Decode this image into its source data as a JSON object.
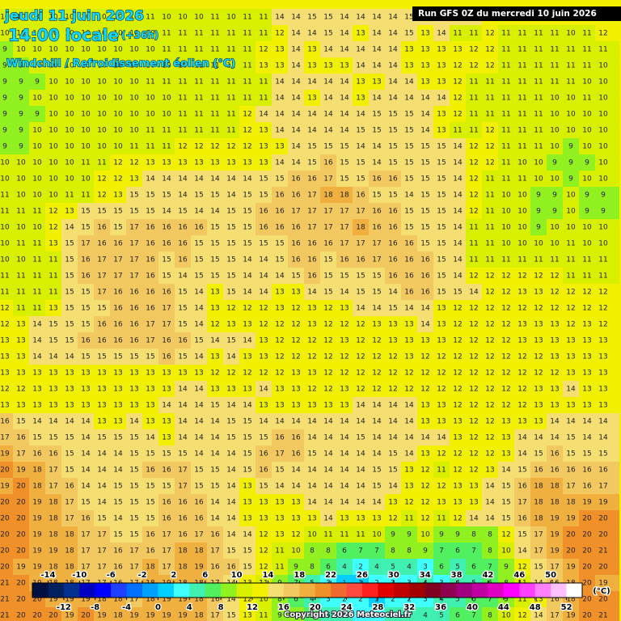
{
  "header": {
    "date": "jeudi 11 juin 2026",
    "time": "14:00 locale",
    "lead": "(+36h)",
    "parameter": "Windchill / Refroidissement éolien (°C)",
    "run": "Run GFS 0Z du mercredi 10 juin 2026"
  },
  "map": {
    "grid": [
      [
        10,
        10,
        10,
        10,
        10,
        10,
        10,
        10,
        10,
        11,
        10,
        10,
        10,
        11,
        10,
        11,
        11,
        14,
        14,
        15,
        15,
        14,
        14,
        14,
        14,
        15,
        15,
        14,
        14,
        14,
        13,
        13,
        12,
        12,
        12,
        12,
        12,
        12
      ],
      [
        10,
        10,
        10,
        10,
        10,
        10,
        10,
        10,
        10,
        10,
        11,
        11,
        11,
        11,
        11,
        11,
        11,
        12,
        14,
        14,
        15,
        14,
        13,
        14,
        14,
        15,
        13,
        14,
        11,
        11,
        12,
        11,
        11,
        11,
        11,
        10,
        11,
        12
      ],
      [
        9,
        10,
        10,
        10,
        10,
        10,
        10,
        10,
        10,
        10,
        11,
        11,
        11,
        11,
        11,
        11,
        12,
        13,
        14,
        13,
        14,
        14,
        14,
        14,
        14,
        13,
        13,
        13,
        13,
        12,
        12,
        11,
        11,
        11,
        11,
        11,
        11,
        11
      ],
      [
        9,
        9,
        10,
        10,
        10,
        10,
        10,
        10,
        10,
        10,
        10,
        10,
        11,
        11,
        11,
        11,
        13,
        13,
        14,
        13,
        13,
        13,
        14,
        14,
        14,
        13,
        13,
        13,
        12,
        12,
        12,
        11,
        11,
        11,
        11,
        11,
        11,
        10
      ],
      [
        9,
        9,
        9,
        10,
        10,
        10,
        10,
        10,
        10,
        11,
        11,
        11,
        11,
        11,
        11,
        11,
        11,
        14,
        14,
        14,
        14,
        14,
        13,
        13,
        14,
        14,
        13,
        13,
        12,
        11,
        11,
        11,
        11,
        11,
        11,
        11,
        10,
        10
      ],
      [
        9,
        9,
        10,
        10,
        10,
        10,
        10,
        10,
        10,
        10,
        10,
        11,
        11,
        11,
        11,
        11,
        11,
        14,
        14,
        13,
        14,
        14,
        13,
        14,
        14,
        14,
        14,
        14,
        12,
        11,
        11,
        11,
        11,
        11,
        10,
        10,
        11,
        10
      ],
      [
        9,
        9,
        9,
        10,
        10,
        10,
        10,
        10,
        10,
        10,
        10,
        11,
        11,
        11,
        11,
        12,
        14,
        14,
        14,
        14,
        14,
        14,
        14,
        15,
        15,
        15,
        14,
        13,
        12,
        11,
        11,
        11,
        11,
        11,
        10,
        10,
        10,
        10
      ],
      [
        9,
        9,
        10,
        10,
        10,
        10,
        10,
        10,
        10,
        11,
        11,
        11,
        11,
        11,
        11,
        12,
        13,
        14,
        14,
        14,
        14,
        14,
        15,
        15,
        15,
        15,
        14,
        13,
        11,
        11,
        12,
        11,
        11,
        11,
        10,
        10,
        10,
        10
      ],
      [
        9,
        9,
        10,
        10,
        10,
        10,
        10,
        10,
        11,
        11,
        11,
        12,
        12,
        12,
        12,
        12,
        13,
        13,
        14,
        15,
        15,
        15,
        14,
        14,
        15,
        15,
        15,
        15,
        14,
        12,
        12,
        11,
        11,
        11,
        10,
        9,
        10,
        10
      ],
      [
        10,
        10,
        10,
        10,
        10,
        11,
        11,
        12,
        12,
        13,
        13,
        13,
        13,
        13,
        13,
        13,
        13,
        14,
        14,
        15,
        16,
        15,
        15,
        14,
        15,
        15,
        15,
        15,
        14,
        12,
        12,
        11,
        10,
        10,
        9,
        9,
        9,
        10
      ],
      [
        10,
        10,
        10,
        10,
        10,
        10,
        12,
        12,
        13,
        14,
        14,
        14,
        14,
        14,
        14,
        14,
        15,
        15,
        16,
        16,
        17,
        15,
        15,
        16,
        16,
        15,
        15,
        15,
        14,
        12,
        11,
        11,
        11,
        10,
        10,
        9,
        10,
        10
      ],
      [
        11,
        10,
        10,
        10,
        11,
        11,
        12,
        13,
        15,
        15,
        15,
        14,
        15,
        15,
        14,
        15,
        15,
        16,
        16,
        17,
        18,
        18,
        16,
        15,
        15,
        14,
        15,
        15,
        14,
        12,
        11,
        10,
        10,
        9,
        9,
        10,
        9,
        9
      ],
      [
        11,
        11,
        11,
        12,
        13,
        15,
        15,
        15,
        15,
        15,
        14,
        15,
        14,
        14,
        15,
        15,
        16,
        16,
        17,
        17,
        17,
        17,
        17,
        16,
        16,
        15,
        15,
        15,
        14,
        12,
        11,
        10,
        10,
        9,
        9,
        10,
        9,
        9
      ],
      [
        10,
        10,
        10,
        12,
        14,
        15,
        16,
        15,
        17,
        16,
        16,
        16,
        16,
        15,
        15,
        15,
        16,
        16,
        16,
        17,
        17,
        17,
        18,
        16,
        16,
        15,
        15,
        15,
        14,
        11,
        11,
        10,
        10,
        9,
        10,
        10,
        10,
        10
      ],
      [
        10,
        11,
        11,
        13,
        15,
        17,
        16,
        16,
        17,
        16,
        16,
        16,
        15,
        15,
        15,
        15,
        15,
        15,
        16,
        16,
        16,
        17,
        17,
        17,
        16,
        16,
        15,
        15,
        14,
        11,
        11,
        10,
        10,
        10,
        10,
        11,
        10,
        10
      ],
      [
        10,
        10,
        11,
        11,
        15,
        16,
        17,
        17,
        17,
        16,
        15,
        16,
        15,
        15,
        15,
        14,
        14,
        15,
        16,
        16,
        15,
        16,
        16,
        17,
        16,
        16,
        16,
        15,
        14,
        11,
        11,
        11,
        11,
        11,
        11,
        11,
        11,
        11
      ],
      [
        11,
        11,
        11,
        11,
        15,
        16,
        17,
        17,
        17,
        16,
        15,
        14,
        15,
        15,
        15,
        14,
        14,
        14,
        15,
        16,
        15,
        15,
        15,
        15,
        16,
        16,
        16,
        15,
        14,
        12,
        12,
        12,
        12,
        12,
        12,
        11,
        11,
        11
      ],
      [
        11,
        11,
        11,
        11,
        15,
        15,
        17,
        16,
        16,
        16,
        16,
        15,
        14,
        13,
        15,
        14,
        14,
        13,
        13,
        14,
        15,
        14,
        15,
        15,
        14,
        16,
        16,
        15,
        15,
        14,
        12,
        12,
        13,
        13,
        12,
        12,
        12,
        12
      ],
      [
        12,
        11,
        11,
        13,
        15,
        15,
        15,
        16,
        16,
        16,
        17,
        15,
        14,
        13,
        12,
        12,
        12,
        13,
        12,
        13,
        12,
        13,
        14,
        14,
        15,
        14,
        14,
        13,
        12,
        12,
        12,
        12,
        12,
        12,
        12,
        12,
        12,
        12
      ],
      [
        12,
        13,
        14,
        15,
        15,
        15,
        16,
        16,
        16,
        17,
        17,
        15,
        14,
        12,
        13,
        13,
        12,
        12,
        12,
        13,
        12,
        12,
        12,
        13,
        13,
        13,
        14,
        13,
        12,
        12,
        12,
        12,
        13,
        13,
        13,
        12,
        13,
        12
      ],
      [
        13,
        13,
        14,
        15,
        15,
        16,
        16,
        16,
        16,
        17,
        16,
        16,
        15,
        14,
        15,
        14,
        13,
        12,
        12,
        12,
        12,
        13,
        12,
        12,
        13,
        13,
        13,
        13,
        12,
        12,
        12,
        12,
        13,
        13,
        13,
        13,
        13,
        13
      ],
      [
        13,
        13,
        14,
        14,
        14,
        15,
        15,
        15,
        15,
        15,
        16,
        15,
        14,
        13,
        14,
        13,
        13,
        12,
        12,
        12,
        12,
        12,
        12,
        12,
        12,
        13,
        12,
        12,
        12,
        12,
        12,
        12,
        12,
        12,
        13,
        13,
        13,
        13
      ],
      [
        13,
        13,
        13,
        13,
        13,
        13,
        13,
        13,
        13,
        13,
        13,
        13,
        13,
        12,
        12,
        12,
        12,
        12,
        13,
        13,
        12,
        12,
        12,
        12,
        12,
        12,
        12,
        12,
        12,
        12,
        12,
        12,
        12,
        12,
        12,
        13,
        13,
        13
      ],
      [
        12,
        12,
        13,
        13,
        13,
        13,
        13,
        13,
        13,
        13,
        13,
        14,
        14,
        13,
        13,
        13,
        14,
        13,
        13,
        12,
        12,
        13,
        12,
        12,
        12,
        12,
        12,
        12,
        12,
        12,
        12,
        12,
        12,
        13,
        13,
        14,
        13,
        13
      ],
      [
        13,
        13,
        13,
        13,
        13,
        13,
        13,
        13,
        13,
        13,
        14,
        14,
        14,
        15,
        14,
        14,
        13,
        13,
        13,
        13,
        13,
        13,
        14,
        14,
        14,
        14,
        13,
        13,
        12,
        12,
        12,
        12,
        12,
        13,
        13,
        13,
        13,
        13
      ],
      [
        16,
        15,
        14,
        14,
        14,
        14,
        13,
        13,
        14,
        13,
        13,
        14,
        14,
        14,
        15,
        15,
        14,
        14,
        14,
        14,
        14,
        14,
        14,
        14,
        14,
        14,
        13,
        13,
        13,
        12,
        12,
        13,
        13,
        13,
        14,
        14,
        14,
        14
      ],
      [
        17,
        16,
        15,
        15,
        15,
        14,
        15,
        15,
        15,
        14,
        13,
        14,
        14,
        14,
        15,
        15,
        15,
        16,
        16,
        14,
        14,
        14,
        15,
        14,
        14,
        14,
        14,
        14,
        13,
        12,
        12,
        13,
        14,
        14,
        14,
        15,
        14,
        14
      ],
      [
        19,
        17,
        16,
        16,
        15,
        14,
        14,
        14,
        15,
        15,
        15,
        15,
        14,
        14,
        14,
        15,
        16,
        17,
        16,
        15,
        14,
        14,
        14,
        14,
        15,
        14,
        13,
        12,
        12,
        12,
        12,
        13,
        14,
        15,
        16,
        15,
        15,
        15
      ],
      [
        20,
        19,
        18,
        17,
        15,
        14,
        14,
        14,
        15,
        16,
        16,
        17,
        15,
        15,
        14,
        15,
        16,
        15,
        14,
        14,
        14,
        14,
        14,
        15,
        15,
        13,
        12,
        11,
        12,
        12,
        13,
        14,
        15,
        16,
        16,
        16,
        16,
        16
      ],
      [
        19,
        20,
        18,
        17,
        16,
        14,
        14,
        15,
        15,
        15,
        15,
        17,
        15,
        15,
        14,
        13,
        15,
        14,
        14,
        14,
        14,
        14,
        14,
        15,
        14,
        13,
        12,
        12,
        13,
        13,
        14,
        15,
        16,
        18,
        18,
        17,
        16,
        17
      ],
      [
        20,
        20,
        19,
        18,
        17,
        15,
        14,
        15,
        15,
        15,
        16,
        16,
        16,
        14,
        14,
        13,
        13,
        13,
        13,
        14,
        14,
        14,
        14,
        14,
        13,
        12,
        12,
        13,
        13,
        13,
        14,
        15,
        17,
        18,
        18,
        18,
        19,
        19
      ],
      [
        20,
        20,
        19,
        18,
        17,
        16,
        15,
        14,
        15,
        15,
        16,
        16,
        16,
        14,
        14,
        13,
        13,
        13,
        13,
        13,
        14,
        13,
        13,
        13,
        12,
        11,
        12,
        11,
        12,
        14,
        14,
        15,
        16,
        18,
        19,
        19,
        20,
        20
      ],
      [
        20,
        20,
        19,
        18,
        18,
        17,
        17,
        15,
        15,
        16,
        17,
        16,
        17,
        16,
        14,
        14,
        12,
        13,
        12,
        10,
        11,
        11,
        11,
        10,
        9,
        9,
        10,
        9,
        9,
        8,
        8,
        12,
        15,
        17,
        19,
        20,
        20,
        20
      ],
      [
        20,
        20,
        19,
        19,
        18,
        17,
        17,
        16,
        17,
        16,
        17,
        18,
        18,
        17,
        15,
        15,
        12,
        11,
        10,
        8,
        8,
        6,
        7,
        7,
        8,
        8,
        9,
        7,
        6,
        7,
        8,
        10,
        14,
        17,
        19,
        20,
        20,
        21
      ],
      [
        20,
        19,
        19,
        18,
        18,
        17,
        17,
        16,
        17,
        18,
        17,
        18,
        19,
        16,
        16,
        15,
        12,
        11,
        9,
        8,
        6,
        4,
        2,
        4,
        5,
        4,
        3,
        6,
        5,
        6,
        7,
        9,
        12,
        15,
        17,
        19,
        20,
        20
      ],
      [
        21,
        20,
        19,
        18,
        18,
        17,
        17,
        16,
        17,
        18,
        19,
        18,
        18,
        17,
        14,
        13,
        11,
        9,
        7,
        5,
        3,
        1,
        1,
        2,
        3,
        3,
        4,
        3,
        4,
        5,
        6,
        8,
        11,
        14,
        16,
        18,
        20,
        19
      ],
      [
        21,
        20,
        20,
        19,
        19,
        19,
        18,
        18,
        17,
        18,
        19,
        19,
        18,
        16,
        14,
        12,
        10,
        8,
        6,
        4,
        3,
        2,
        2,
        1,
        2,
        2,
        3,
        4,
        5,
        6,
        7,
        9,
        11,
        13,
        16,
        18,
        20,
        20
      ],
      [
        21,
        20,
        20,
        20,
        19,
        20,
        19,
        18,
        19,
        19,
        19,
        19,
        18,
        17,
        15,
        13,
        11,
        9,
        8,
        6,
        5,
        4,
        3,
        3,
        4,
        4,
        4,
        5,
        6,
        7,
        8,
        10,
        12,
        14,
        17,
        19,
        20,
        21
      ]
    ],
    "colorbar": {
      "lim": [
        -16,
        54
      ],
      "colors": [
        "#001040",
        "#002060",
        "#003090",
        "#0000c0",
        "#0000ff",
        "#2040ff",
        "#0070ff",
        "#00a0ff",
        "#00d0ff",
        "#40ffff",
        "#40f0b0",
        "#50f060",
        "#90f020",
        "#d8f000",
        "#f0f000",
        "#f5de72",
        "#f2c860",
        "#f0b040",
        "#f09028",
        "#f06a30",
        "#ff4a40",
        "#ff2020",
        "#e00000",
        "#c00000",
        "#a00000",
        "#800020",
        "#900050",
        "#a00080",
        "#c000a0",
        "#e000c0",
        "#ff00ff",
        "#ff40ff",
        "#ff80ff",
        "#ffc0ff",
        "#ffffff"
      ],
      "top_ticks": [
        -14,
        -10,
        -6,
        -2,
        2,
        6,
        10,
        14,
        18,
        22,
        26,
        30,
        34,
        38,
        42,
        46,
        50
      ],
      "bottom_ticks": [
        -12,
        -8,
        -4,
        0,
        4,
        8,
        12,
        16,
        20,
        24,
        28,
        32,
        36,
        40,
        44,
        48,
        52
      ],
      "unit": "(°C)"
    }
  },
  "footer": {
    "copyright": "Copyright 2026 Meteociel.fr"
  }
}
